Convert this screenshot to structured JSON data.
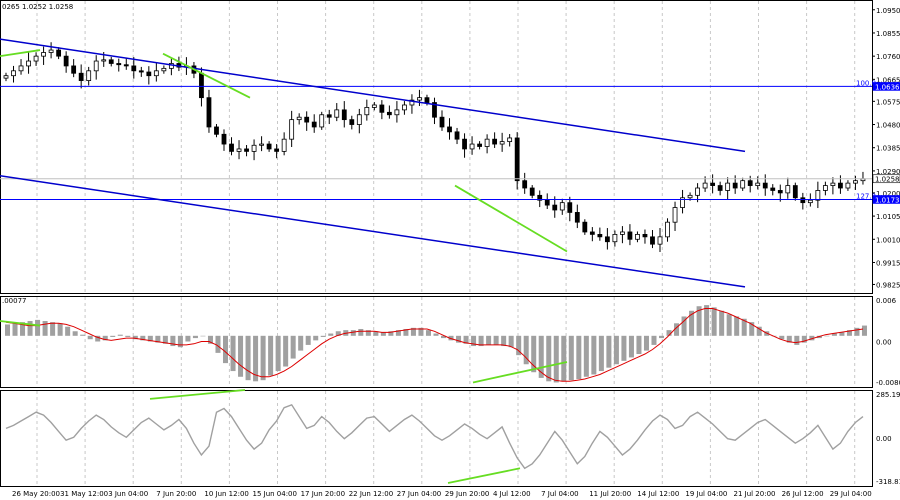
{
  "chart_data": [
    {
      "type": "candlestick",
      "header": "0265 1.0252 1.0258",
      "ylim": [
        0.979,
        1.099
      ],
      "ytick_labels": [
        "1.0950",
        "1.0855",
        "1.0760",
        "1.0665",
        "1.0575",
        "1.0480",
        "1.0385",
        "1.0290",
        "1.0200",
        "1.0105",
        "1.0010",
        "0.9915",
        "0.9825"
      ],
      "xtick_labels": [
        "26 May 20:00",
        "31 May 12:00",
        "3 Jun 04:00",
        "7 Jun 20:00",
        "10 Jun 12:00",
        "15 Jun 04:00",
        "17 Jun 20:00",
        "22 Jun 12:00",
        "27 Jun 04:00",
        "29 Jun 20:00",
        "4 Jul 12:00",
        "7 Jul 04:00",
        "11 Jul 20:00",
        "14 Jul 12:00",
        "19 Jul 04:00",
        "21 Jul 20:00",
        "26 Jul 12:00",
        "29 Jul 04:00"
      ],
      "close_path": [
        1.068,
        1.07,
        1.072,
        1.074,
        1.076,
        1.0775,
        1.0785,
        1.076,
        1.072,
        1.069,
        1.066,
        1.07,
        1.074,
        1.0745,
        1.073,
        1.0725,
        1.072,
        1.07,
        1.0695,
        1.068,
        1.07,
        1.071,
        1.073,
        1.0715,
        1.072,
        1.069,
        1.059,
        1.047,
        1.044,
        1.04,
        1.037,
        1.038,
        1.037,
        1.0395,
        1.04,
        1.038,
        1.037,
        1.042,
        1.05,
        1.051,
        1.049,
        1.047,
        1.052,
        1.051,
        1.054,
        1.05,
        1.048,
        1.052,
        1.055,
        1.056,
        1.053,
        1.052,
        1.054,
        1.056,
        1.058,
        1.059,
        1.057,
        1.051,
        1.047,
        1.045,
        1.042,
        1.038,
        1.04,
        1.039,
        1.042,
        1.04,
        1.041,
        1.0425,
        1.025,
        1.022,
        1.019,
        1.017,
        1.015,
        1.013,
        1.016,
        1.012,
        1.008,
        1.004,
        1.003,
        1.002,
        1.0,
        1.003,
        1.004,
        1.001,
        1.003,
        1.002,
        0.999,
        1.002,
        1.008,
        1.014,
        1.018,
        1.019,
        1.022,
        1.024,
        1.023,
        1.021,
        1.024,
        1.022,
        1.025,
        1.023,
        1.024,
        1.022,
        1.021,
        1.02,
        1.023,
        1.018,
        1.016,
        1.017,
        1.021,
        1.023,
        1.024,
        1.022,
        1.024,
        1.025,
        1.0258
      ],
      "horizontal_levels": [
        {
          "label": "100.0",
          "value": 1.0636,
          "value_label": "1.0636",
          "color": "#0000ff"
        },
        {
          "label": "127.2",
          "value": 1.0173,
          "value_label": "1.0173",
          "color": "#0000ff"
        },
        {
          "label": "",
          "value": 1.0258,
          "value_label": "1.0258",
          "color": "#c0c0c0"
        }
      ],
      "channel_lines": [
        {
          "from": [
            0,
            1.083
          ],
          "to": [
            745,
            1.037
          ],
          "color": "#0000cc"
        },
        {
          "from": [
            0,
            1.027
          ],
          "to": [
            745,
            0.9815
          ],
          "color": "#0000cc"
        }
      ],
      "divergence_lines": [
        {
          "from": [
            0,
            1.076
          ],
          "to": [
            40,
            1.0785
          ],
          "color": "#66dd22"
        },
        {
          "from": [
            163,
            1.077
          ],
          "to": [
            250,
            1.059
          ],
          "color": "#66dd22"
        },
        {
          "from": [
            455,
            1.023
          ],
          "to": [
            567,
            0.996
          ],
          "color": "#66dd22"
        }
      ]
    },
    {
      "type": "histogram_line",
      "header": ".00077",
      "ylim": [
        -0.009,
        0.007
      ],
      "ytick_labels": [
        "0.006",
        "0.00",
        "-0.00802"
      ],
      "signal_line_color": "#dd0000",
      "histogram_color": "#a0a0a0",
      "histogram_values": [
        0.002,
        0.0022,
        0.0024,
        0.0026,
        0.0028,
        0.0026,
        0.0024,
        0.0022,
        0.0016,
        0.0008,
        0.0002,
        -0.0006,
        -0.001,
        -0.0008,
        -0.0002,
        0.0002,
        -0.0002,
        -0.0006,
        -0.0008,
        -0.001,
        -0.0012,
        -0.0014,
        -0.0018,
        -0.002,
        -0.001,
        -0.0004,
        0.0,
        -0.0014,
        -0.003,
        -0.0048,
        -0.0062,
        -0.0072,
        -0.0078,
        -0.008,
        -0.0078,
        -0.007,
        -0.0062,
        -0.0054,
        -0.004,
        -0.0026,
        -0.0016,
        -0.0008,
        -0.0002,
        0.0004,
        0.0008,
        0.001,
        0.001,
        0.0012,
        0.001,
        0.0008,
        0.0006,
        0.0008,
        0.001,
        0.0012,
        0.0014,
        0.0014,
        0.001,
        0.0004,
        -0.0004,
        -0.0008,
        -0.0012,
        -0.0014,
        -0.0018,
        -0.0018,
        -0.0016,
        -0.0016,
        -0.0018,
        -0.002,
        -0.0034,
        -0.005,
        -0.0064,
        -0.0074,
        -0.008,
        -0.0082,
        -0.008,
        -0.0078,
        -0.0076,
        -0.0072,
        -0.0068,
        -0.0062,
        -0.0056,
        -0.005,
        -0.0044,
        -0.0038,
        -0.0032,
        -0.0026,
        -0.0016,
        -0.0004,
        0.001,
        0.0022,
        0.0034,
        0.0044,
        0.0052,
        0.0054,
        0.005,
        0.0044,
        0.0038,
        0.0034,
        0.003,
        0.0024,
        0.0016,
        0.0008,
        0.0,
        -0.0006,
        -0.0012,
        -0.0016,
        -0.0012,
        -0.0008,
        -0.0004,
        0.0,
        0.0004,
        0.0006,
        0.001,
        0.0014,
        0.0018
      ],
      "signal_values": [
        0.0024,
        0.0022,
        0.002,
        0.0018,
        0.0018,
        0.002,
        0.0022,
        0.0022,
        0.002,
        0.0016,
        0.001,
        0.0004,
        -0.0002,
        -0.0006,
        -0.0008,
        -0.0006,
        -0.0004,
        -0.0004,
        -0.0006,
        -0.0008,
        -0.001,
        -0.0012,
        -0.0014,
        -0.0016,
        -0.0016,
        -0.0014,
        -0.001,
        -0.001,
        -0.0016,
        -0.0026,
        -0.0038,
        -0.005,
        -0.006,
        -0.0068,
        -0.0072,
        -0.0072,
        -0.0068,
        -0.0062,
        -0.0054,
        -0.0044,
        -0.0034,
        -0.0024,
        -0.0014,
        -0.0006,
        0.0,
        0.0004,
        0.0006,
        0.0008,
        0.0008,
        0.0008,
        0.0006,
        0.0006,
        0.0008,
        0.001,
        0.0012,
        0.0012,
        0.0012,
        0.0008,
        0.0002,
        -0.0004,
        -0.0008,
        -0.0012,
        -0.0014,
        -0.0016,
        -0.0016,
        -0.0016,
        -0.0016,
        -0.0018,
        -0.0024,
        -0.0036,
        -0.005,
        -0.0062,
        -0.0072,
        -0.0078,
        -0.008,
        -0.008,
        -0.0078,
        -0.0076,
        -0.0072,
        -0.0068,
        -0.0062,
        -0.0056,
        -0.005,
        -0.0044,
        -0.0038,
        -0.0032,
        -0.0024,
        -0.0014,
        -0.0002,
        0.0012,
        0.0024,
        0.0036,
        0.0044,
        0.0048,
        0.0048,
        0.0044,
        0.004,
        0.0034,
        0.0028,
        0.0022,
        0.0014,
        0.0006,
        0.0,
        -0.0006,
        -0.001,
        -0.0012,
        -0.001,
        -0.0006,
        -0.0002,
        0.0002,
        0.0004,
        0.0006,
        0.0008,
        0.001,
        0.0012
      ],
      "divergence_lines": [
        {
          "from": [
            0,
            0.0026
          ],
          "to": [
            40,
            0.0018
          ],
          "color": "#66dd22"
        },
        {
          "from": [
            473,
            -0.0082
          ],
          "to": [
            567,
            -0.0046
          ],
          "color": "#66dd22"
        }
      ]
    },
    {
      "type": "line",
      "ylim": [
        -350,
        300
      ],
      "ytick_labels": [
        "285.1954",
        "0.00",
        "-318.8114"
      ],
      "line_color": "#a0a0a0",
      "values": [
        40,
        60,
        90,
        120,
        150,
        130,
        80,
        20,
        -40,
        -20,
        40,
        90,
        130,
        100,
        50,
        10,
        -20,
        30,
        80,
        110,
        70,
        30,
        60,
        100,
        40,
        -60,
        -140,
        -80,
        150,
        175,
        120,
        40,
        -40,
        -100,
        -60,
        30,
        90,
        180,
        200,
        120,
        40,
        60,
        120,
        80,
        20,
        -30,
        10,
        60,
        110,
        120,
        70,
        20,
        60,
        100,
        130,
        90,
        40,
        -10,
        -40,
        -10,
        30,
        70,
        40,
        0,
        -30,
        10,
        50,
        -60,
        -160,
        -230,
        -200,
        -140,
        -60,
        20,
        -40,
        -120,
        -200,
        -150,
        -60,
        20,
        -20,
        -80,
        -140,
        -100,
        -40,
        30,
        90,
        130,
        100,
        40,
        60,
        120,
        150,
        110,
        70,
        20,
        -30,
        -40,
        0,
        40,
        80,
        100,
        60,
        20,
        -20,
        -60,
        -30,
        10,
        60,
        -20,
        -100,
        -60,
        20,
        80,
        120
      ],
      "divergence_lines": [
        {
          "from": [
            150,
            240
          ],
          "to": [
            245,
            300
          ],
          "color": "#66dd22"
        },
        {
          "from": [
            448,
            -330
          ],
          "to": [
            520,
            -230
          ],
          "color": "#66dd22"
        }
      ]
    }
  ]
}
